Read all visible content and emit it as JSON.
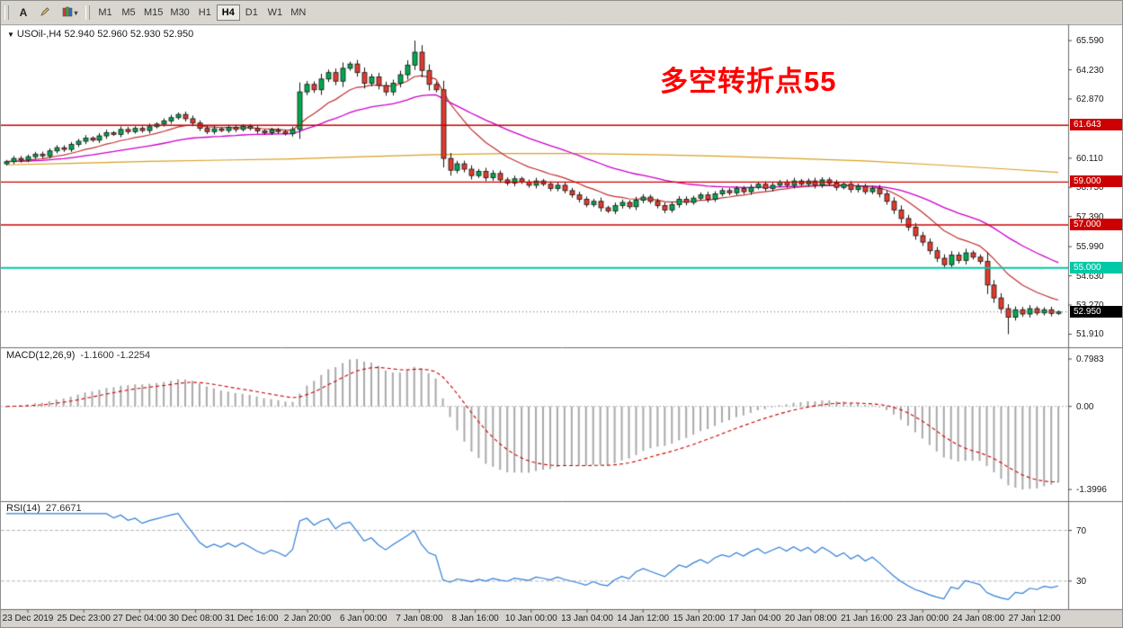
{
  "toolbar": {
    "tools": [
      {
        "name": "text-tool",
        "label": "A"
      },
      {
        "name": "draw-tool",
        "label": ""
      },
      {
        "name": "colors-tool",
        "label": ""
      }
    ],
    "timeframes": [
      "M1",
      "M5",
      "M15",
      "M30",
      "H1",
      "H4",
      "D1",
      "W1",
      "MN"
    ],
    "active_timeframe": "H4"
  },
  "panels": {
    "macd": {
      "title": "MACD(12,26,9)",
      "values": "-1.1600 -1.2254"
    },
    "rsi": {
      "title": "RSI(14)",
      "value": "27.6671"
    }
  },
  "chart_data": {
    "type": "candlestick",
    "symbol": "USOil",
    "timeframe": "H4",
    "title": {
      "symbol": "USOil-,H4",
      "ohlc": "52.940 52.960 52.930 52.950"
    },
    "annotation": {
      "text": "多空转折点55",
      "color": "#FF0000"
    },
    "y_range": [
      51.3,
      66.35
    ],
    "y_tick_labels": [
      "65.590",
      "64.230",
      "62.870",
      "60.110",
      "58.750",
      "57.390",
      "55.990",
      "54.630",
      "53.270",
      "51.910"
    ],
    "x_tick_labels": [
      "23 Dec 2019",
      "25 Dec 23:00",
      "27 Dec 04:00",
      "30 Dec 08:00",
      "31 Dec 16:00",
      "2 Jan 20:00",
      "6 Jan 00:00",
      "7 Jan 08:00",
      "8 Jan 16:00",
      "10 Jan 00:00",
      "13 Jan 04:00",
      "14 Jan 12:00",
      "15 Jan 20:00",
      "17 Jan 04:00",
      "20 Jan 08:00",
      "21 Jan 16:00",
      "23 Jan 00:00",
      "24 Jan 08:00",
      "27 Jan 12:00"
    ],
    "first_open": 59.85,
    "closes": [
      59.95,
      60.1,
      60.02,
      60.18,
      60.3,
      60.22,
      60.45,
      60.6,
      60.52,
      60.75,
      60.9,
      61.05,
      60.95,
      61.15,
      61.3,
      61.22,
      61.45,
      61.35,
      61.5,
      61.4,
      61.58,
      61.7,
      61.85,
      62.0,
      62.15,
      61.95,
      61.75,
      61.5,
      61.35,
      61.48,
      61.4,
      61.55,
      61.45,
      61.6,
      61.5,
      61.38,
      61.3,
      61.42,
      61.35,
      61.25,
      61.45,
      63.2,
      63.55,
      63.3,
      63.8,
      64.1,
      63.7,
      64.3,
      64.5,
      64.1,
      63.6,
      63.9,
      63.5,
      63.2,
      63.6,
      64.0,
      64.45,
      65.05,
      64.2,
      63.55,
      63.3,
      60.1,
      59.55,
      59.85,
      59.6,
      59.3,
      59.5,
      59.2,
      59.4,
      59.1,
      58.95,
      59.15,
      59.0,
      58.85,
      59.05,
      58.9,
      58.7,
      58.85,
      58.6,
      58.4,
      58.2,
      57.95,
      58.1,
      57.8,
      57.65,
      57.9,
      58.05,
      57.85,
      58.15,
      58.3,
      58.1,
      57.9,
      57.7,
      57.95,
      58.2,
      58.05,
      58.25,
      58.4,
      58.2,
      58.45,
      58.6,
      58.5,
      58.7,
      58.55,
      58.75,
      58.9,
      58.7,
      58.85,
      59.0,
      58.85,
      59.05,
      58.9,
      59.05,
      58.85,
      59.1,
      58.95,
      58.75,
      58.9,
      58.65,
      58.8,
      58.55,
      58.7,
      58.45,
      58.1,
      57.7,
      57.3,
      56.9,
      56.5,
      56.2,
      55.8,
      55.45,
      55.15,
      55.6,
      55.35,
      55.7,
      55.5,
      55.3,
      54.2,
      53.6,
      53.1,
      52.7,
      53.05,
      52.85,
      53.1,
      52.9,
      53.05,
      52.88,
      52.95
    ],
    "extreme_high": {
      "index": 57,
      "price": 65.59
    },
    "extreme_low": {
      "index": 140,
      "price": 51.91
    },
    "candle_up_color": "#00A94F",
    "candle_down_color": "#E23B2E",
    "hlines": [
      {
        "price": 61.643,
        "label": "61.643",
        "color": "#CC0000",
        "width": 1.4
      },
      {
        "price": 59.0,
        "label": "59.000",
        "color": "#CC0000",
        "width": 1.4
      },
      {
        "price": 57.0,
        "label": "57.000",
        "color": "#CC0000",
        "width": 1.4
      },
      {
        "price": 55.0,
        "label": "55.000",
        "color": "#00C9A7",
        "width": 2
      }
    ],
    "current_price": {
      "value": 52.95,
      "label": "52.950"
    },
    "overlays": [
      {
        "name": "ma-fast",
        "period": 12,
        "color": "#C03030"
      },
      {
        "name": "ma-medium",
        "period": 34,
        "color": "#CC00CC"
      },
      {
        "name": "ma-slow",
        "color": "#D9A021",
        "anchors": [
          [
            0,
            59.8
          ],
          [
            10,
            59.88
          ],
          [
            20,
            59.96
          ],
          [
            30,
            60.02
          ],
          [
            40,
            60.08
          ],
          [
            50,
            60.18
          ],
          [
            60,
            60.28
          ],
          [
            70,
            60.33
          ],
          [
            80,
            60.33
          ],
          [
            90,
            60.28
          ],
          [
            100,
            60.2
          ],
          [
            110,
            60.1
          ],
          [
            120,
            59.98
          ],
          [
            130,
            59.8
          ],
          [
            140,
            59.6
          ],
          [
            147,
            59.45
          ]
        ]
      }
    ],
    "macd": {
      "fast": 12,
      "slow": 26,
      "signal": 9,
      "range": [
        -1.55,
        0.95
      ],
      "display_max": 0.7983,
      "display_min": -1.3996,
      "current_main": -1.16,
      "current_signal": -1.2254,
      "axis_labels": [
        "0.7983",
        "0.00",
        "-1.3996"
      ],
      "hist_color": "#A9A9A9",
      "signal_color": "#CC0000"
    },
    "rsi": {
      "period": 14,
      "current": 27.6671,
      "range": [
        10,
        91
      ],
      "levels": [
        70,
        30
      ],
      "color": "#2F7ED8"
    }
  }
}
